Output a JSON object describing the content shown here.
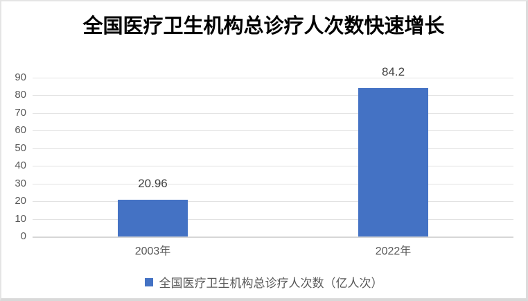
{
  "chart_data": {
    "type": "bar",
    "title": "全国医疗卫生机构总诊疗人次数快速增长",
    "categories": [
      "2003年",
      "2022年"
    ],
    "series": [
      {
        "name": "全国医疗卫生机构总诊疗人次数（亿人次）",
        "values": [
          20.96,
          84.2
        ]
      }
    ],
    "data_labels": [
      "20.96",
      "84.2"
    ],
    "ylim": [
      0,
      90
    ],
    "yticks": [
      0,
      10,
      20,
      30,
      40,
      50,
      60,
      70,
      80,
      90
    ],
    "grid": true,
    "legend_position": "bottom",
    "bar_color": "#4472C4",
    "gridline_color": "#e2e2e2",
    "axis_label_color": "#595959",
    "data_label_color": "#404040",
    "title_color": "#000000"
  }
}
